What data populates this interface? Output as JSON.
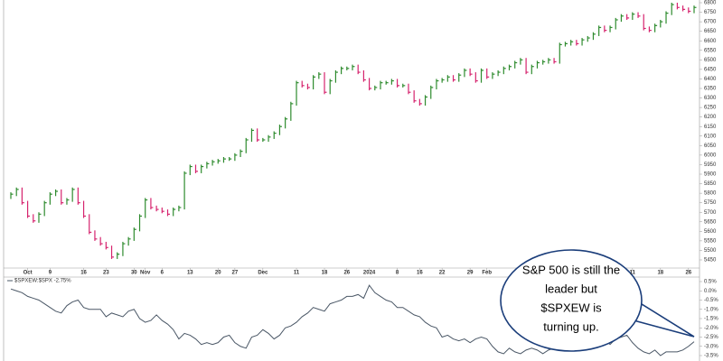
{
  "chart_data": {
    "type": "ohlc",
    "up_color": "#2e8b2e",
    "down_color": "#d6246e",
    "categories": [
      null,
      null,
      null,
      "Oct",
      null,
      null,
      null,
      "9",
      null,
      null,
      null,
      null,
      null,
      "16",
      null,
      null,
      null,
      "23",
      null,
      null,
      null,
      null,
      "30",
      null,
      "Nov",
      null,
      null,
      "6",
      null,
      null,
      null,
      null,
      "13",
      null,
      null,
      null,
      null,
      "20",
      null,
      null,
      "27",
      null,
      null,
      null,
      null,
      "Dec",
      null,
      null,
      null,
      null,
      null,
      "11",
      null,
      null,
      null,
      null,
      "18",
      null,
      null,
      null,
      "26",
      null,
      null,
      null,
      "2024",
      null,
      null,
      null,
      null,
      "8",
      null,
      null,
      null,
      "16",
      null,
      null,
      null,
      "22",
      null,
      null,
      null,
      null,
      "29",
      null,
      null,
      "Feb",
      null,
      null,
      null,
      null,
      null,
      null,
      null,
      null,
      null,
      null,
      null,
      null,
      null,
      null,
      null,
      null,
      null,
      null,
      null,
      null,
      null,
      null,
      null,
      null,
      null,
      "11",
      null,
      null,
      null,
      null,
      "18",
      null,
      null,
      null,
      null,
      "26",
      null
    ],
    "high": [
      5805,
      5830,
      5830,
      5760,
      5690,
      5700,
      5760,
      5805,
      5820,
      5820,
      5775,
      5830,
      5830,
      5760,
      5690,
      5605,
      5570,
      5545,
      5525,
      5490,
      5545,
      5570,
      5620,
      5690,
      5775,
      5775,
      5735,
      5725,
      5715,
      5725,
      5735,
      5915,
      5950,
      5950,
      5950,
      5965,
      5975,
      5980,
      5990,
      5990,
      6010,
      6030,
      6090,
      6140,
      6140,
      6090,
      6105,
      6125,
      6160,
      6200,
      6280,
      6390,
      6390,
      6375,
      6420,
      6435,
      6435,
      6400,
      6445,
      6465,
      6465,
      6475,
      6475,
      6445,
      6405,
      6365,
      6390,
      6390,
      6400,
      6400,
      6375,
      6375,
      6340,
      6295,
      6315,
      6365,
      6400,
      6405,
      6420,
      6420,
      6430,
      6455,
      6455,
      6435,
      6455,
      6455,
      6435,
      6445,
      6465,
      6475,
      6495,
      6510,
      6510,
      6475,
      6495,
      6500,
      6510,
      6510,
      6590,
      6595,
      6605,
      6605,
      6615,
      6625,
      6645,
      6680,
      6680,
      6680,
      6720,
      6740,
      6740,
      6750,
      6750,
      6740,
      6675,
      6690,
      6710,
      6755,
      6800,
      6800,
      6785,
      6775,
      6785
    ],
    "low": [
      5770,
      5785,
      5740,
      5670,
      5645,
      5645,
      5680,
      5740,
      5785,
      5740,
      5740,
      5755,
      5740,
      5670,
      5585,
      5550,
      5525,
      5505,
      5455,
      5455,
      5470,
      5525,
      5550,
      5600,
      5670,
      5715,
      5705,
      5695,
      5680,
      5680,
      5705,
      5715,
      5895,
      5905,
      5905,
      5930,
      5945,
      5955,
      5960,
      5970,
      5970,
      5990,
      6010,
      6070,
      6070,
      6070,
      6070,
      6085,
      6105,
      6140,
      6180,
      6260,
      6355,
      6345,
      6345,
      6400,
      6320,
      6320,
      6380,
      6425,
      6445,
      6445,
      6425,
      6385,
      6340,
      6340,
      6345,
      6370,
      6370,
      6355,
      6355,
      6320,
      6275,
      6260,
      6260,
      6295,
      6345,
      6380,
      6385,
      6385,
      6385,
      6410,
      6415,
      6380,
      6380,
      6400,
      6400,
      6415,
      6425,
      6445,
      6455,
      6475,
      6425,
      6425,
      6455,
      6475,
      6480,
      6480,
      6480,
      6570,
      6575,
      6575,
      6575,
      6595,
      6605,
      6625,
      6645,
      6645,
      6660,
      6700,
      6710,
      6710,
      6720,
      6655,
      6645,
      6645,
      6670,
      6690,
      6735,
      6765,
      6755,
      6745,
      6745
    ],
    "close": [
      5795,
      5820,
      5750,
      5680,
      5655,
      5690,
      5750,
      5795,
      5810,
      5750,
      5765,
      5820,
      5750,
      5680,
      5595,
      5560,
      5535,
      5515,
      5465,
      5480,
      5535,
      5560,
      5610,
      5680,
      5765,
      5725,
      5715,
      5705,
      5690,
      5715,
      5725,
      5905,
      5940,
      5915,
      5940,
      5955,
      5965,
      5970,
      5980,
      5980,
      6000,
      6020,
      6080,
      6130,
      6080,
      6080,
      6095,
      6115,
      6150,
      6190,
      6270,
      6380,
      6365,
      6355,
      6410,
      6425,
      6330,
      6390,
      6435,
      6455,
      6455,
      6465,
      6435,
      6395,
      6350,
      6355,
      6380,
      6380,
      6390,
      6365,
      6365,
      6330,
      6285,
      6270,
      6305,
      6355,
      6390,
      6395,
      6410,
      6395,
      6420,
      6445,
      6425,
      6390,
      6445,
      6410,
      6425,
      6435,
      6455,
      6465,
      6485,
      6500,
      6435,
      6465,
      6485,
      6490,
      6500,
      6490,
      6580,
      6585,
      6595,
      6585,
      6605,
      6615,
      6635,
      6670,
      6655,
      6670,
      6710,
      6730,
      6720,
      6740,
      6730,
      6665,
      6655,
      6680,
      6700,
      6745,
      6790,
      6775,
      6765,
      6755,
      6775
    ],
    "ylim": [
      5450,
      6800
    ],
    "yticks": [
      5450,
      5500,
      5550,
      5600,
      5650,
      5700,
      5750,
      5800,
      5850,
      5900,
      5950,
      6000,
      6050,
      6100,
      6150,
      6200,
      6250,
      6300,
      6350,
      6400,
      6450,
      6500,
      6550,
      6600,
      6650,
      6700,
      6750,
      6800
    ],
    "lower_panel": {
      "type": "line",
      "legend": "$SPXEW:$SPX -2.75%",
      "color": "#4a5766",
      "values": [
        0.1,
        0.0,
        -0.1,
        -0.3,
        -0.4,
        -0.5,
        -0.7,
        -0.9,
        -1.1,
        -1.2,
        -0.8,
        -0.6,
        -0.5,
        -0.9,
        -1.0,
        -1.0,
        -1.0,
        -1.4,
        -1.2,
        -1.3,
        -1.4,
        -1.1,
        -1.0,
        -1.5,
        -1.7,
        -1.6,
        -1.3,
        -1.6,
        -1.8,
        -2.1,
        -2.6,
        -2.3,
        -2.4,
        -2.6,
        -2.9,
        -2.8,
        -2.9,
        -2.8,
        -2.5,
        -2.4,
        -2.8,
        -3.0,
        -3.1,
        -2.5,
        -2.4,
        -2.1,
        -2.3,
        -2.6,
        -2.4,
        -2.0,
        -1.9,
        -1.7,
        -1.4,
        -1.2,
        -0.9,
        -1.0,
        -1.1,
        -0.7,
        -0.6,
        -0.5,
        -0.3,
        -0.3,
        -0.2,
        -0.4,
        0.3,
        -0.1,
        -0.3,
        -0.5,
        -0.6,
        -0.9,
        -0.9,
        -1.1,
        -1.3,
        -1.4,
        -1.7,
        -1.9,
        -2.0,
        -2.5,
        -2.4,
        -2.6,
        -2.7,
        -2.6,
        -2.8,
        -2.6,
        -2.5,
        -2.6,
        -3.0,
        -3.3,
        -3.4,
        -3.1,
        -3.3,
        -3.4,
        -3.2,
        -3.1,
        -3.2,
        -3.4,
        -3.2,
        -3.1,
        -3.0,
        -3.2,
        -3.1,
        -3.0,
        -2.9,
        -2.7,
        -2.8,
        -2.8,
        -2.6,
        -2.9,
        -2.6,
        -2.5,
        -2.4,
        -2.8,
        -3.1,
        -3.3,
        -3.4,
        -3.2,
        -3.5,
        -3.3,
        -3.3,
        -3.3,
        -3.2,
        -3.0,
        -2.75
      ],
      "ylim": [
        -3.5,
        0.5
      ],
      "yticks": [
        {
          "value": 0.5,
          "label": "0.5%"
        },
        {
          "value": 0.0,
          "label": "0.0%"
        },
        {
          "value": -0.5,
          "label": "-0.5%"
        },
        {
          "value": -1.0,
          "label": "-1.0%"
        },
        {
          "value": -1.5,
          "label": "-1.5%"
        },
        {
          "value": -2.0,
          "label": "-2.0%"
        },
        {
          "value": -2.5,
          "label": "-2.5%"
        },
        {
          "value": -3.0,
          "label": "-3.0%"
        },
        {
          "value": -3.5,
          "label": "-3.5%"
        }
      ]
    },
    "annotation": [
      "S&P 500 is still the",
      "leader but",
      "$SPXEW is",
      "turning up."
    ]
  }
}
